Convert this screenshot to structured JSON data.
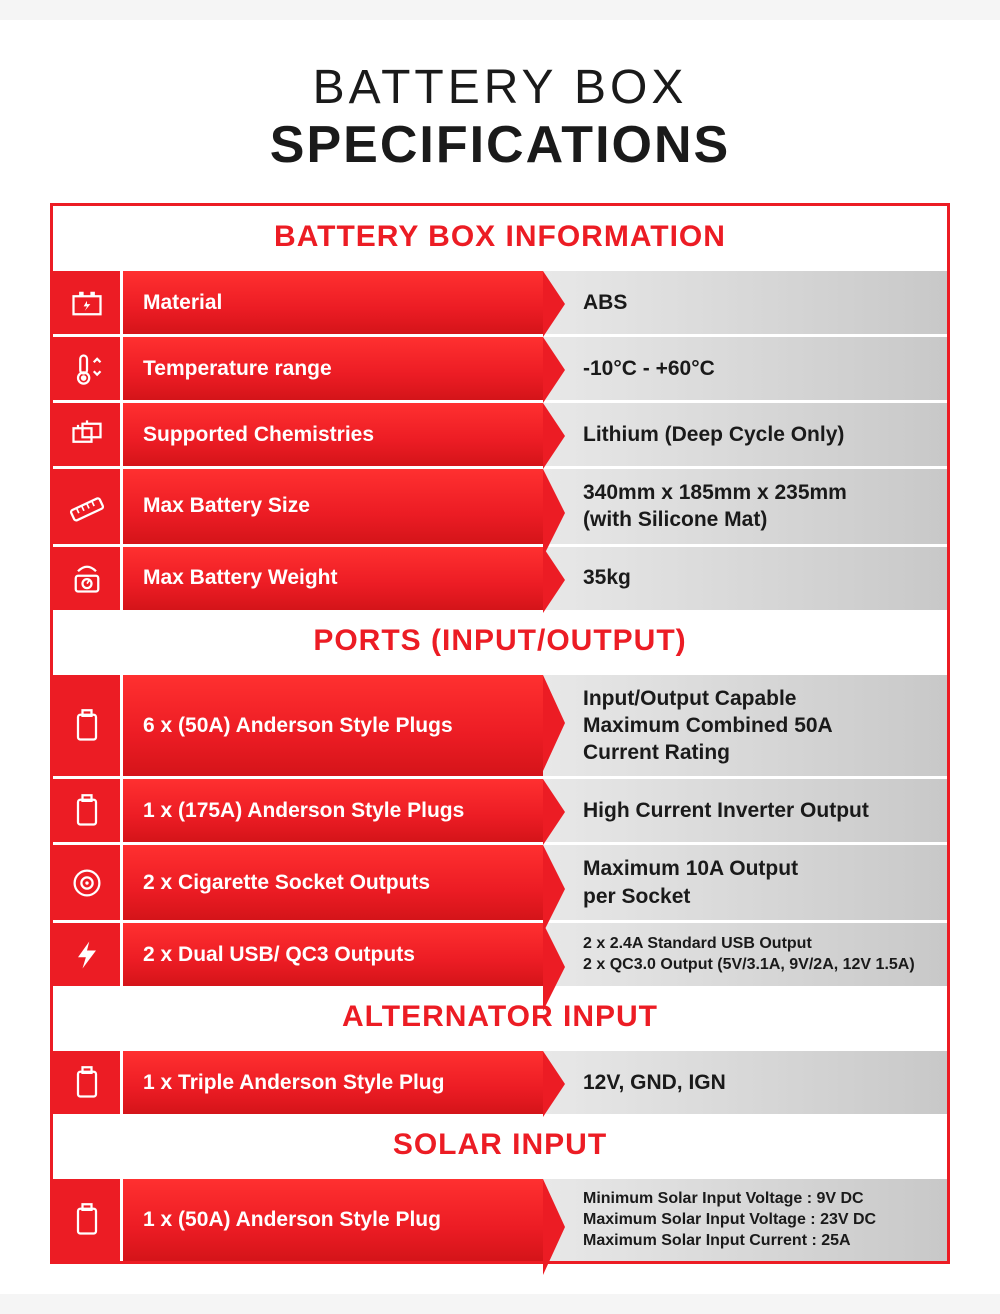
{
  "title": {
    "line1": "BATTERY BOX",
    "line2": "SPECIFICATIONS"
  },
  "colors": {
    "accent": "#ec1c24",
    "text": "#1a1a1a",
    "rowValueBg": "#d8d8d8"
  },
  "sections": [
    {
      "header": "BATTERY BOX INFORMATION",
      "rows": [
        {
          "icon": "battery",
          "label": "Material",
          "value": "ABS"
        },
        {
          "icon": "thermo",
          "label": "Temperature range",
          "value": "-10°C - +60°C"
        },
        {
          "icon": "chem",
          "label": "Supported Chemistries",
          "value": "Lithium (Deep Cycle Only)"
        },
        {
          "icon": "ruler",
          "label": "Max Battery Size",
          "value": "340mm x 185mm x 235mm\n(with Silicone Mat)"
        },
        {
          "icon": "scale",
          "label": "Max Battery Weight",
          "value": "35kg"
        }
      ]
    },
    {
      "header": "PORTS (INPUT/OUTPUT)",
      "rows": [
        {
          "icon": "plug",
          "label": "6 x (50A) Anderson Style Plugs",
          "value": "Input/Output Capable\nMaximum Combined 50A\nCurrent Rating"
        },
        {
          "icon": "plug",
          "label": "1 x (175A) Anderson Style Plugs",
          "value": "High Current Inverter Output"
        },
        {
          "icon": "socket",
          "label": "2 x Cigarette Socket Outputs",
          "value": "Maximum 10A Output\nper Socket"
        },
        {
          "icon": "bolt",
          "label": "2 x Dual USB/ QC3 Outputs",
          "value": "2 x 2.4A Standard USB Output\n2 x QC3.0 Output (5V/3.1A, 9V/2A, 12V 1.5A)",
          "small": true
        }
      ]
    },
    {
      "header": "ALTERNATOR INPUT",
      "rows": [
        {
          "icon": "plug",
          "label": "1 x Triple Anderson Style Plug",
          "value": "12V, GND, IGN"
        }
      ]
    },
    {
      "header": "SOLAR INPUT",
      "rows": [
        {
          "icon": "plug",
          "label": "1 x (50A) Anderson Style Plug",
          "value": "Minimum Solar Input Voltage : 9V DC\nMaximum Solar Input Voltage : 23V DC\nMaximum Solar Input Current : 25A",
          "small": true
        }
      ]
    }
  ]
}
